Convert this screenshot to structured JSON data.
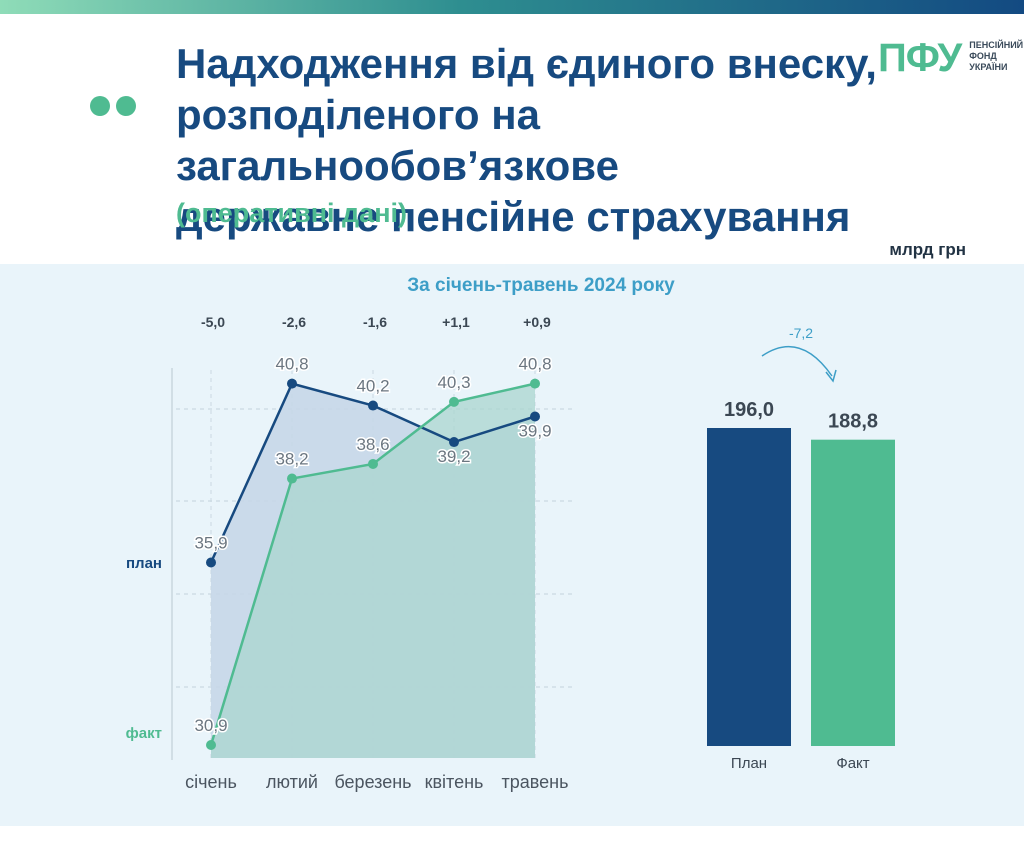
{
  "header": {
    "title_lines": [
      "Надходження від єдиного внеску,",
      "розподіленого на загальнообов’язкове",
      "державне пенсійне страхування"
    ],
    "subtitle": "(оперативні дані)",
    "unit": "млрд грн"
  },
  "logo": {
    "mark": "ПФУ",
    "lines": [
      "ПЕНСІЙНИЙ",
      "ФОНД",
      "УКРАЇНИ"
    ]
  },
  "colors": {
    "plan": "#174a80",
    "fact": "#4fbb91",
    "panel_bg": "#e9f4fa",
    "title": "#174a80"
  },
  "chart_data": [
    {
      "type": "line",
      "title": "За січень-травень 2024 року",
      "categories": [
        "січень",
        "лютий",
        "березень",
        "квітень",
        "травень"
      ],
      "series": [
        {
          "name": "план",
          "values": [
            35.9,
            40.8,
            40.2,
            39.2,
            39.9
          ]
        },
        {
          "name": "факт",
          "values": [
            30.9,
            38.2,
            38.6,
            40.3,
            40.8
          ]
        }
      ],
      "differences": [
        "-5,0",
        "-2,6",
        "-1,6",
        "+1,1",
        "+0,9"
      ],
      "ylim": [
        30.9,
        41.5
      ],
      "grid": true
    },
    {
      "type": "bar",
      "categories": [
        "План",
        "Факт"
      ],
      "values": [
        196.0,
        188.8
      ],
      "value_labels": [
        "196,0",
        "188,8"
      ],
      "difference_label": "-7,2"
    }
  ]
}
